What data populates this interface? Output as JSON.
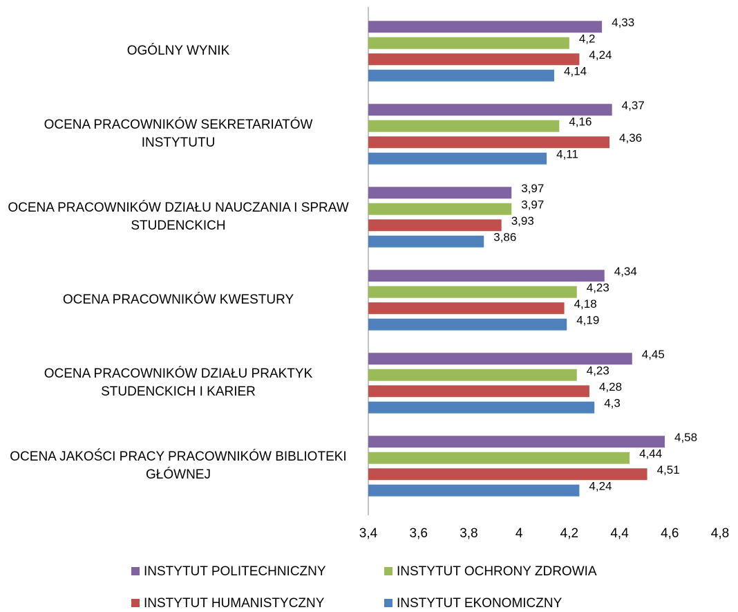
{
  "chart_data": {
    "type": "hbar",
    "categories": [
      "OGÓLNY WYNIK",
      "OCENA PRACOWNIKÓW SEKRETARIATÓW INSTYTUTU",
      "OCENA PRACOWNIKÓW DZIAŁU NAUCZANIA I SPRAW STUDENCKICH",
      "OCENA PRACOWNIKÓW KWESTURY",
      "OCENA PRACOWNIKÓW DZIAŁU PRAKTYK STUDENCKICH I KARIER",
      "OCENA JAKOŚCI PRACY PRACOWNIKÓW BIBLIOTEKI GŁÓWNEJ"
    ],
    "series": [
      {
        "name": "INSTYTUT POLITECHNICZNY",
        "color": "#8064a2",
        "values": [
          4.33,
          4.37,
          3.97,
          4.34,
          4.45,
          4.58
        ],
        "value_labels": [
          "4,33",
          "4,37",
          "3,97",
          "4,34",
          "4,45",
          "4,58"
        ]
      },
      {
        "name": "INSTYTUT OCHRONY ZDROWIA",
        "color": "#9bbb59",
        "values": [
          4.2,
          4.16,
          3.97,
          4.23,
          4.23,
          4.44
        ],
        "value_labels": [
          "4,2",
          "4,16",
          "3,97",
          "4,23",
          "4,23",
          "4,44"
        ]
      },
      {
        "name": "INSTYTUT HUMANISTYCZNY",
        "color": "#c0504d",
        "values": [
          4.24,
          4.36,
          3.93,
          4.18,
          4.28,
          4.51
        ],
        "value_labels": [
          "4,24",
          "4,36",
          "3,93",
          "4,18",
          "4,28",
          "4,51"
        ]
      },
      {
        "name": "INSTYTUT EKONOMICZNY",
        "color": "#4f81bd",
        "values": [
          4.14,
          4.11,
          3.86,
          4.19,
          4.3,
          4.24
        ],
        "value_labels": [
          "4,14",
          "4,11",
          "3,86",
          "4,19",
          "4,3",
          "4,24"
        ]
      }
    ],
    "xlim": [
      3.4,
      4.8
    ],
    "xticks": [
      {
        "value": 3.4,
        "label": "3,4"
      },
      {
        "value": 3.6,
        "label": "3,6"
      },
      {
        "value": 3.8,
        "label": "3,8"
      },
      4,
      {
        "value": 4.2,
        "label": "4,2"
      },
      {
        "value": 4.4,
        "label": "4,4"
      },
      {
        "value": 4.6,
        "label": "4,6"
      },
      {
        "value": 4.8,
        "label": "4,8"
      }
    ],
    "grid": false
  }
}
